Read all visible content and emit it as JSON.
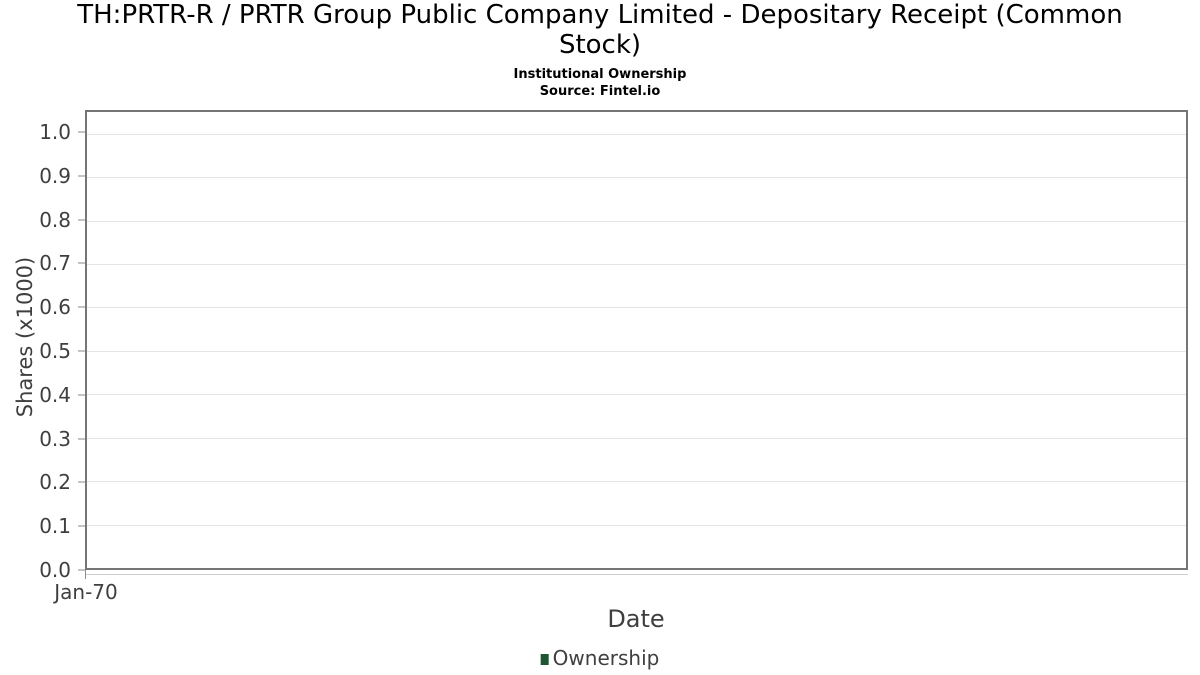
{
  "chart_data": {
    "type": "line",
    "title": "TH:PRTR-R / PRTR Group Public Company Limited - Depositary Receipt (Common Stock)",
    "subtitle": "Institutional Ownership",
    "source": "Source: Fintel.io",
    "xlabel": "Date",
    "ylabel": "Shares (x1000)",
    "xticks": [
      "Jan-70"
    ],
    "yticks": [
      "0.0",
      "0.1",
      "0.2",
      "0.3",
      "0.4",
      "0.5",
      "0.6",
      "0.7",
      "0.8",
      "0.9",
      "1.0"
    ],
    "ylim": [
      0,
      1.05
    ],
    "grid": true,
    "legend_position": "bottom",
    "series": [
      {
        "name": "Ownership",
        "color": "#1e5631",
        "x": [],
        "values": []
      }
    ]
  },
  "colors": {
    "plot_border": "#757575",
    "gridline": "#e4e4e4",
    "tick_text": "#3f3f3f",
    "title_text": "#000000",
    "legend_swatch": "#1e5631"
  }
}
